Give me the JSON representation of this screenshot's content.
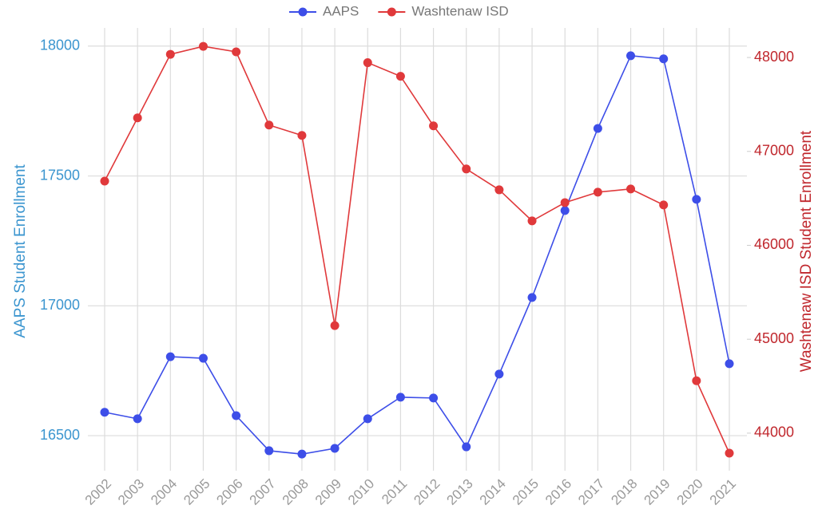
{
  "chart_data": {
    "type": "line",
    "categories": [
      "2002",
      "2003",
      "2004",
      "2005",
      "2006",
      "2007",
      "2008",
      "2009",
      "2010",
      "2011",
      "2012",
      "2013",
      "2014",
      "2015",
      "2016",
      "2017",
      "2018",
      "2019",
      "2020",
      "2021"
    ],
    "y_label": "AAPS Student Enrollment",
    "y2_label": "Washtenaw ISD Student Enrollment",
    "ylim": [
      16365,
      18070
    ],
    "yticks": [
      16500,
      17000,
      17500,
      18000
    ],
    "y2lim": [
      43600,
      48315
    ],
    "y2ticks": [
      44000,
      45000,
      46000,
      47000,
      48000
    ],
    "grid": true,
    "legend": "top",
    "series": [
      {
        "name": "AAPS",
        "color": "#3d4ee8",
        "values": [
          16590,
          16565,
          16804,
          16798,
          16577,
          16442,
          16429,
          16451,
          16565,
          16648,
          16645,
          16457,
          16737,
          17032,
          17367,
          17683,
          17963,
          17951,
          17410,
          16777
        ]
      },
      {
        "name": "Washtenaw ISD",
        "color": "#e0393b",
        "axis": "y2",
        "values": [
          46684,
          47357,
          48034,
          48119,
          48060,
          47281,
          47170,
          45145,
          47945,
          47800,
          47272,
          46813,
          46591,
          46260,
          46455,
          46566,
          46600,
          46430,
          44558,
          43787
        ]
      }
    ]
  }
}
